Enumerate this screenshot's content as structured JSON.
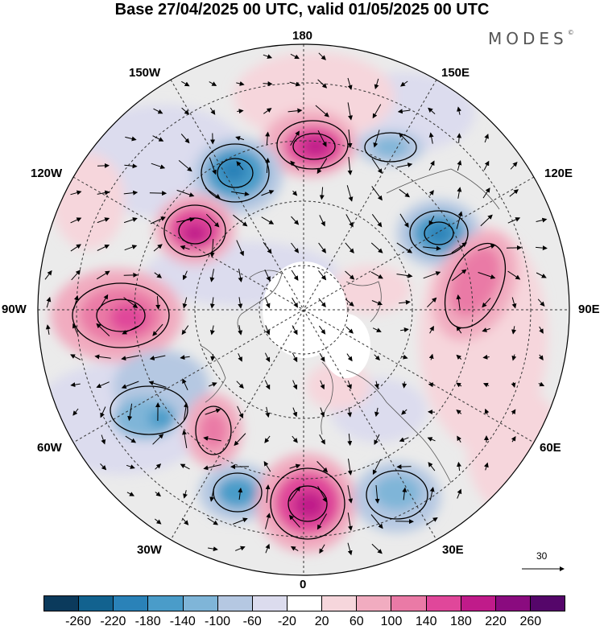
{
  "title": "Base 27/04/2025 00 UTC, valid 01/05/2025 00 UTC",
  "brand": "MODES",
  "brand_mark": "©",
  "longitude_labels": {
    "top": "180",
    "top_left": "150W",
    "top_right": "150E",
    "upper_left": "120W",
    "upper_right": "120E",
    "left": "90W",
    "right": "90E",
    "lower_left": "60W",
    "lower_right": "60E",
    "bottom_left": "30W",
    "bottom_right": "30E",
    "bottom": "0"
  },
  "reference_vector": "30",
  "colorbar": {
    "ticks": [
      "-260",
      "-220",
      "-180",
      "-140",
      "-100",
      "-60",
      "-20",
      "20",
      "60",
      "100",
      "140",
      "180",
      "220",
      "260"
    ],
    "colors": [
      "#0b3a5c",
      "#12628f",
      "#2a82b8",
      "#4a9cc9",
      "#7fb5d8",
      "#b5c8e2",
      "#dcdcee",
      "#ffffff",
      "#f6d6dc",
      "#f1acc0",
      "#ea7aa6",
      "#e0479a",
      "#c01b8a",
      "#8a0b7f",
      "#55066a"
    ]
  },
  "map_colors": {
    "positive_strong": "#c01b8a",
    "positive_mid": "#e0479a",
    "positive_weak": "#f1acc0",
    "positive_faint": "#f6d6dc",
    "negative_strong": "#2a82b8",
    "negative_mid": "#7fb5d8",
    "negative_weak": "#b5c8e2",
    "negative_faint": "#dcdcee",
    "background": "#ebebeb"
  }
}
